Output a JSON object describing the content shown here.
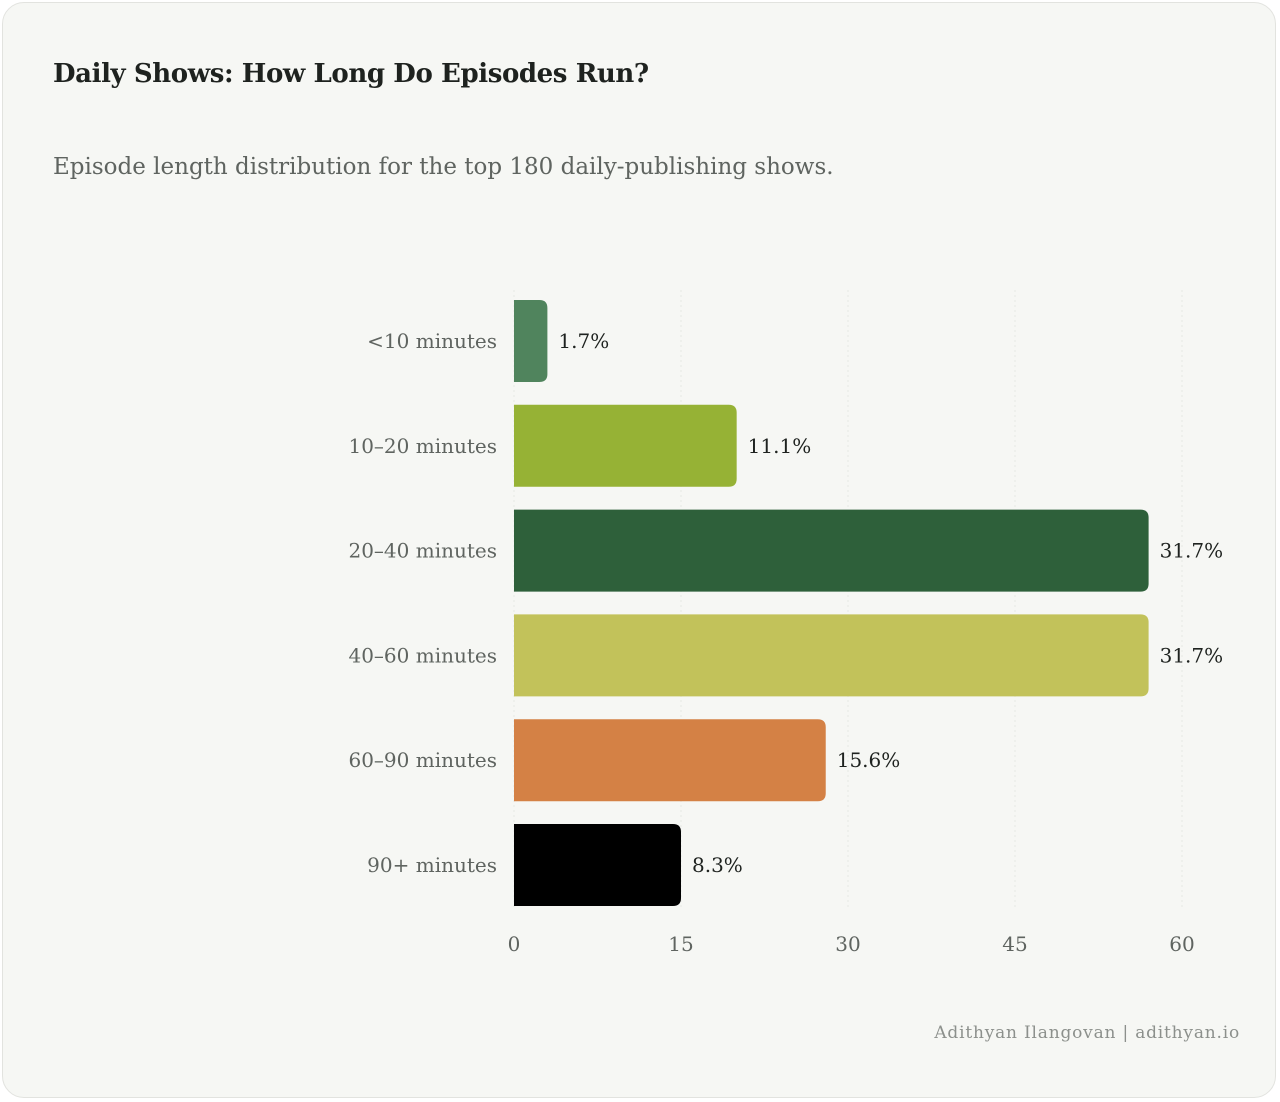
{
  "chart_data": {
    "type": "bar",
    "orientation": "horizontal",
    "title": "Daily Shows: How Long Do Episodes Run?",
    "subtitle": "Episode length distribution for the top 180 daily-publishing shows.",
    "categories": [
      "<10 minutes",
      "10–20 minutes",
      "20–40 minutes",
      "40–60 minutes",
      "60–90 minutes",
      "90+ minutes"
    ],
    "values": [
      3,
      20,
      57,
      57,
      28,
      15
    ],
    "value_labels": [
      "1.7%",
      "11.1%",
      "31.7%",
      "31.7%",
      "15.6%",
      "8.3%"
    ],
    "colors": [
      "#50845d",
      "#96b235",
      "#2e603a",
      "#c2c25a",
      "#d48145",
      "#000000"
    ],
    "xlim": [
      0,
      60
    ],
    "x_ticks": [
      "0",
      "15",
      "30",
      "45",
      "60"
    ],
    "grid": true
  },
  "footer": {
    "credit": "Adithyan Ilangovan | adithyan.io"
  }
}
